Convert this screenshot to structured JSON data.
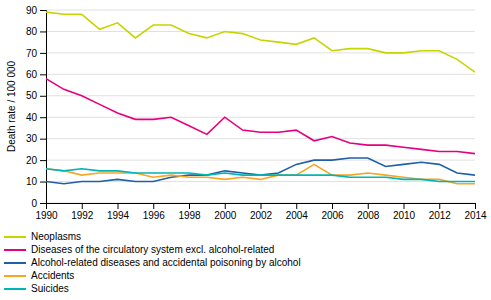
{
  "chart_data": {
    "type": "line",
    "y_label": "Death rate / 100 000",
    "x": [
      1990,
      1991,
      1992,
      1993,
      1994,
      1995,
      1996,
      1997,
      1998,
      1999,
      2000,
      2001,
      2002,
      2003,
      2004,
      2005,
      2006,
      2007,
      2008,
      2009,
      2010,
      2011,
      2012,
      2013,
      2014
    ],
    "series": [
      {
        "name": "Neoplasms",
        "color": "#c8d400",
        "values": [
          89,
          88,
          88,
          81,
          84,
          77,
          83,
          83,
          79,
          77,
          80,
          79,
          76,
          75,
          74,
          77,
          71,
          72,
          72,
          70,
          70,
          71,
          71,
          67,
          61
        ]
      },
      {
        "name": "Diseases of the circulatory system excl. alcohol-related",
        "color": "#e6007e",
        "values": [
          58,
          53,
          50,
          46,
          42,
          39,
          39,
          40,
          36,
          32,
          40,
          34,
          33,
          33,
          34,
          29,
          31,
          28,
          27,
          27,
          26,
          25,
          24,
          24,
          23
        ]
      },
      {
        "name": "Alcohol-related diseases and accidental poisoning by alcohol",
        "color": "#1f5fa6",
        "values": [
          10,
          9,
          10,
          10,
          11,
          10,
          10,
          12,
          13,
          13,
          15,
          14,
          13,
          14,
          18,
          20,
          20,
          21,
          21,
          17,
          18,
          19,
          18,
          14,
          13
        ]
      },
      {
        "name": "Accidents",
        "color": "#f5a623",
        "values": [
          16,
          15,
          13,
          14,
          14,
          14,
          12,
          13,
          12,
          12,
          11,
          12,
          11,
          13,
          13,
          18,
          13,
          13,
          14,
          13,
          12,
          11,
          11,
          9,
          9
        ]
      },
      {
        "name": "Suicides",
        "color": "#00b5b5",
        "values": [
          16,
          15,
          16,
          15,
          15,
          14,
          14,
          14,
          14,
          13,
          14,
          13,
          13,
          13,
          13,
          13,
          13,
          12,
          12,
          12,
          11,
          11,
          10,
          10,
          10
        ]
      }
    ],
    "xlim": [
      1990,
      2014
    ],
    "ylim": [
      0,
      90
    ],
    "xticks": [
      1990,
      1992,
      1994,
      1996,
      1998,
      2000,
      2002,
      2004,
      2006,
      2008,
      2010,
      2012,
      2014
    ],
    "yticks": [
      0,
      10,
      20,
      30,
      40,
      50,
      60,
      70,
      80,
      90
    ],
    "grid": true,
    "legend": "bottom"
  }
}
